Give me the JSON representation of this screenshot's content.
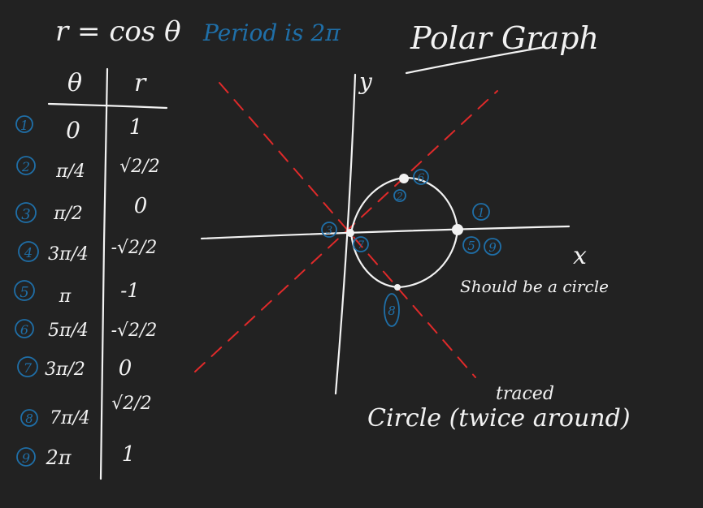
{
  "equation": {
    "formula": "r = cos θ",
    "period_note": "Period is 2π"
  },
  "title": "Polar Graph",
  "table": {
    "headers": [
      "θ",
      "r"
    ],
    "rows": [
      {
        "step": "1",
        "theta": "0",
        "r": "1"
      },
      {
        "step": "2",
        "theta": "π/4",
        "r": "√2/2"
      },
      {
        "step": "3",
        "theta": "π/2",
        "r": "0"
      },
      {
        "step": "4",
        "theta": "3π/4",
        "r": "-√2/2"
      },
      {
        "step": "5",
        "theta": "π",
        "r": "-1"
      },
      {
        "step": "6",
        "theta": "5π/4",
        "r": "-√2/2"
      },
      {
        "step": "7",
        "theta": "3π/2",
        "r": "0"
      },
      {
        "step": "8",
        "theta": "7π/4",
        "r": "√2/2"
      },
      {
        "step": "9",
        "theta": "2π",
        "r": "1"
      }
    ]
  },
  "graph": {
    "x_axis_label": "x",
    "y_axis_label": "y",
    "point_labels": {
      "top": "6",
      "top_inner": "2",
      "right_above": "1",
      "right_below": "5",
      "right_below_2": "9",
      "origin_left": "3",
      "origin_right": "7",
      "bottom": "8"
    }
  },
  "notes": {
    "should_be": "Should be a circle",
    "traced": "traced",
    "circle_label": "Circle (twice around)"
  },
  "colors": {
    "background": "#222222",
    "ink": "#f2f2f2",
    "blue_ink": "#1f6fa8",
    "red_dash": "#e02a2a"
  }
}
